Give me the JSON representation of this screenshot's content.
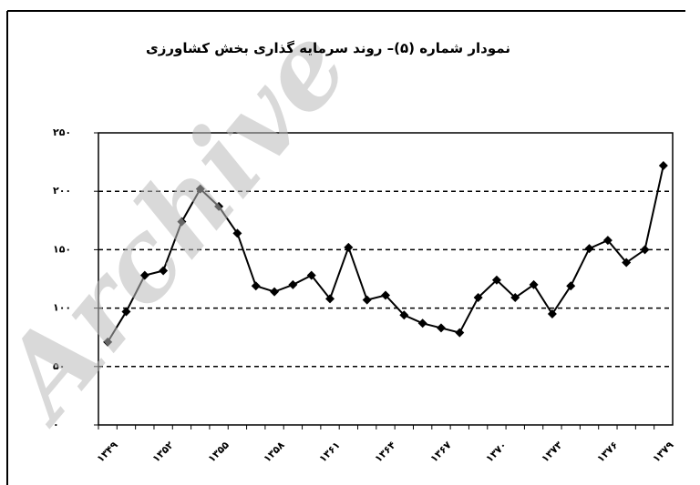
{
  "chart_data": {
    "type": "line",
    "title": "نمودار شماره (۵)– روند سرمایه گذاری بخش کشاورزی",
    "watermark": "Archive",
    "categories": [
      "۱۳۴۹",
      null,
      null,
      "۱۳۵۲",
      null,
      null,
      "۱۳۵۵",
      null,
      null,
      "۱۳۵۸",
      null,
      null,
      "۱۳۶۱",
      null,
      null,
      "۱۳۶۴",
      null,
      null,
      "۱۳۶۷",
      null,
      null,
      "۱۳۷۰",
      null,
      null,
      "۱۳۷۳",
      null,
      null,
      "۱۳۷۶",
      null,
      null,
      "۱۳۷۹"
    ],
    "series": [
      {
        "name": null,
        "color": "#000000",
        "values": [
          71,
          97,
          128,
          132,
          174,
          202,
          187,
          164,
          119,
          114,
          120,
          128,
          108,
          152,
          107,
          111,
          94,
          87,
          83,
          79,
          109,
          124,
          109,
          120,
          95,
          119,
          151,
          158,
          139,
          150,
          222
        ]
      }
    ],
    "ylim": [
      0,
      250
    ],
    "yticks": [
      {
        "value": 0,
        "label": "۰"
      },
      {
        "value": 50,
        "label": "۵۰"
      },
      {
        "value": 100,
        "label": "۱۰۰"
      },
      {
        "value": 150,
        "label": "۱۵۰"
      },
      {
        "value": 200,
        "label": "۲۰۰"
      },
      {
        "value": 250,
        "label": "۲۵۰"
      }
    ],
    "grid": true
  }
}
